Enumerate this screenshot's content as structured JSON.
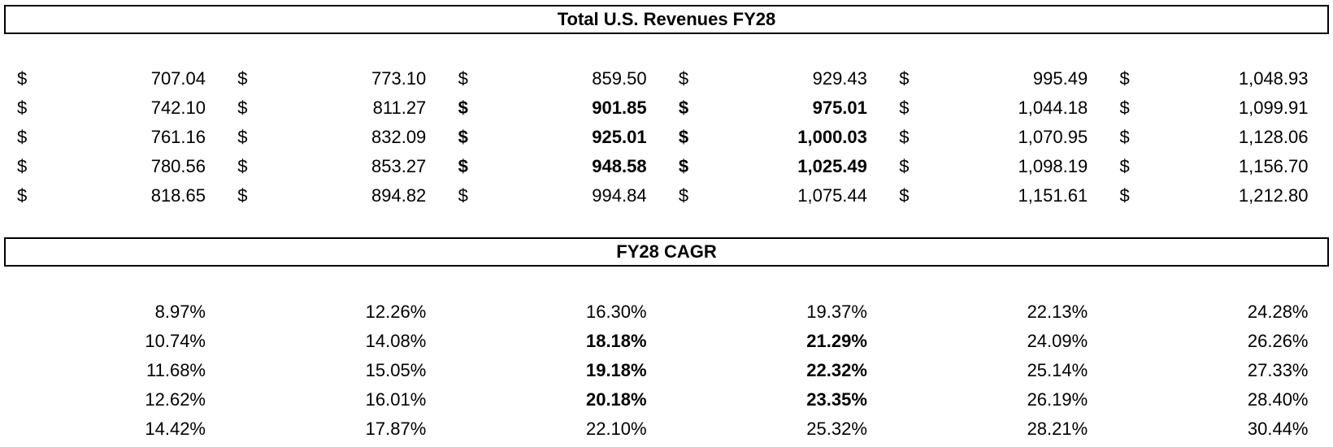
{
  "revenue": {
    "title": "Total U.S. Revenues FY28",
    "currency_symbol": "$",
    "rows": [
      {
        "cells": [
          {
            "v": "707.04",
            "b": false
          },
          {
            "v": "773.10",
            "b": false
          },
          {
            "v": "859.50",
            "b": false
          },
          {
            "v": "929.43",
            "b": false
          },
          {
            "v": "995.49",
            "b": false
          },
          {
            "v": "1,048.93",
            "b": false
          }
        ]
      },
      {
        "cells": [
          {
            "v": "742.10",
            "b": false
          },
          {
            "v": "811.27",
            "b": false
          },
          {
            "v": "901.85",
            "b": true
          },
          {
            "v": "975.01",
            "b": true
          },
          {
            "v": "1,044.18",
            "b": false
          },
          {
            "v": "1,099.91",
            "b": false
          }
        ]
      },
      {
        "cells": [
          {
            "v": "761.16",
            "b": false
          },
          {
            "v": "832.09",
            "b": false
          },
          {
            "v": "925.01",
            "b": true
          },
          {
            "v": "1,000.03",
            "b": true
          },
          {
            "v": "1,070.95",
            "b": false
          },
          {
            "v": "1,128.06",
            "b": false
          }
        ]
      },
      {
        "cells": [
          {
            "v": "780.56",
            "b": false
          },
          {
            "v": "853.27",
            "b": false
          },
          {
            "v": "948.58",
            "b": true
          },
          {
            "v": "1,025.49",
            "b": true
          },
          {
            "v": "1,098.19",
            "b": false
          },
          {
            "v": "1,156.70",
            "b": false
          }
        ]
      },
      {
        "cells": [
          {
            "v": "818.65",
            "b": false
          },
          {
            "v": "894.82",
            "b": false
          },
          {
            "v": "994.84",
            "b": false
          },
          {
            "v": "1,075.44",
            "b": false
          },
          {
            "v": "1,151.61",
            "b": false
          },
          {
            "v": "1,212.80",
            "b": false
          }
        ]
      }
    ]
  },
  "cagr": {
    "title": "FY28 CAGR",
    "rows": [
      {
        "cells": [
          {
            "v": "8.97%",
            "b": false
          },
          {
            "v": "12.26%",
            "b": false
          },
          {
            "v": "16.30%",
            "b": false
          },
          {
            "v": "19.37%",
            "b": false
          },
          {
            "v": "22.13%",
            "b": false
          },
          {
            "v": "24.28%",
            "b": false
          }
        ]
      },
      {
        "cells": [
          {
            "v": "10.74%",
            "b": false
          },
          {
            "v": "14.08%",
            "b": false
          },
          {
            "v": "18.18%",
            "b": true
          },
          {
            "v": "21.29%",
            "b": true
          },
          {
            "v": "24.09%",
            "b": false
          },
          {
            "v": "26.26%",
            "b": false
          }
        ]
      },
      {
        "cells": [
          {
            "v": "11.68%",
            "b": false
          },
          {
            "v": "15.05%",
            "b": false
          },
          {
            "v": "19.18%",
            "b": true
          },
          {
            "v": "22.32%",
            "b": true
          },
          {
            "v": "25.14%",
            "b": false
          },
          {
            "v": "27.33%",
            "b": false
          }
        ]
      },
      {
        "cells": [
          {
            "v": "12.62%",
            "b": false
          },
          {
            "v": "16.01%",
            "b": false
          },
          {
            "v": "20.18%",
            "b": true
          },
          {
            "v": "23.35%",
            "b": true
          },
          {
            "v": "26.19%",
            "b": false
          },
          {
            "v": "28.40%",
            "b": false
          }
        ]
      },
      {
        "cells": [
          {
            "v": "14.42%",
            "b": false
          },
          {
            "v": "17.87%",
            "b": false
          },
          {
            "v": "22.10%",
            "b": false
          },
          {
            "v": "25.32%",
            "b": false
          },
          {
            "v": "28.21%",
            "b": false
          },
          {
            "v": "30.44%",
            "b": false
          }
        ]
      }
    ]
  }
}
